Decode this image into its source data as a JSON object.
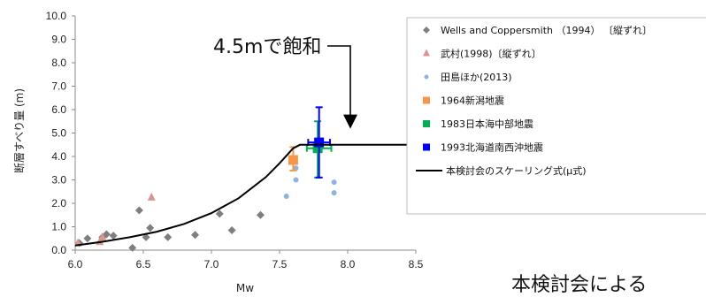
{
  "chart_data": {
    "type": "scatter",
    "xlabel": "Mw",
    "ylabel": "断層すべり量 (m)",
    "xlim": [
      6.0,
      8.5
    ],
    "ylim": [
      0.0,
      10.0
    ],
    "xticks": [
      "6.0",
      "6.5",
      "7.0",
      "7.5",
      "8.0",
      "8.5"
    ],
    "yticks": [
      "0.0",
      "1.0",
      "2.0",
      "3.0",
      "4.0",
      "5.0",
      "6.0",
      "7.0",
      "8.0",
      "9.0",
      "10.0"
    ],
    "grid": false,
    "legend_position": "right",
    "annotation": "4.5mで飽和",
    "series": [
      {
        "name": "Wells and Coppersmith （1994） 〔縦ずれ〕",
        "marker": "diamond",
        "color": "#7f7f7f",
        "points": [
          [
            6.03,
            0.3
          ],
          [
            6.09,
            0.5
          ],
          [
            6.2,
            0.55
          ],
          [
            6.23,
            0.68
          ],
          [
            6.28,
            0.62
          ],
          [
            6.42,
            0.1
          ],
          [
            6.47,
            1.7
          ],
          [
            6.52,
            0.55
          ],
          [
            6.55,
            0.95
          ],
          [
            6.68,
            0.55
          ],
          [
            6.88,
            0.65
          ],
          [
            7.06,
            1.55
          ],
          [
            7.15,
            0.85
          ],
          [
            7.36,
            1.5
          ]
        ]
      },
      {
        "name": "武村(1998)〔縦ずれ〕",
        "marker": "triangle",
        "color": "#d9958f",
        "points": [
          [
            6.02,
            0.3
          ],
          [
            6.18,
            0.35
          ],
          [
            6.2,
            0.55
          ],
          [
            6.56,
            2.25
          ]
        ]
      },
      {
        "name": "田島ほか(2013)",
        "marker": "circle",
        "color": "#8db3e2",
        "points": [
          [
            7.55,
            2.3
          ],
          [
            7.62,
            3.0
          ],
          [
            7.62,
            3.5
          ],
          [
            7.9,
            2.9
          ],
          [
            7.9,
            2.45
          ]
        ]
      },
      {
        "name": "1964新潟地震",
        "marker": "square",
        "color": "#f79646",
        "points": [
          [
            7.6,
            3.85
          ]
        ],
        "error_y": [
          [
            3.4,
            4.4
          ]
        ]
      },
      {
        "name": "1983日本海中部地震",
        "marker": "square",
        "color": "#00b050",
        "points": [
          [
            7.78,
            4.35
          ]
        ],
        "error_y": [
          [
            3.1,
            5.5
          ]
        ],
        "error_x": [
          [
            7.7,
            7.88
          ]
        ]
      },
      {
        "name": "1993北海道南西沖地震",
        "marker": "square",
        "color": "#0000ff",
        "points": [
          [
            7.79,
            4.6
          ]
        ],
        "error_y": [
          [
            3.1,
            6.1
          ]
        ],
        "error_x": [
          [
            7.71,
            7.87
          ]
        ]
      },
      {
        "name": "本検討会のスケーリング式(μ式)",
        "marker": "line",
        "color": "#000000",
        "points": [
          [
            6.0,
            0.2
          ],
          [
            6.2,
            0.36
          ],
          [
            6.4,
            0.55
          ],
          [
            6.6,
            0.79
          ],
          [
            6.8,
            1.12
          ],
          [
            7.0,
            1.58
          ],
          [
            7.2,
            2.22
          ],
          [
            7.4,
            3.12
          ],
          [
            7.5,
            3.71
          ],
          [
            7.6,
            4.35
          ],
          [
            7.65,
            4.5
          ],
          [
            8.5,
            4.5
          ]
        ]
      }
    ]
  },
  "caption": "本検討会による"
}
